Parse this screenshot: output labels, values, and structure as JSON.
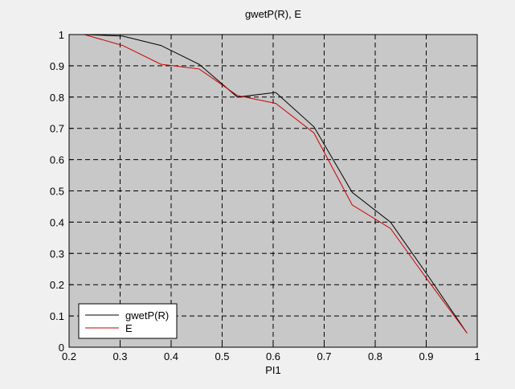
{
  "chart_data": {
    "type": "line",
    "title": "gwetP(R), E",
    "xlabel": "PI1",
    "ylabel": "",
    "xlim": [
      0.2,
      1
    ],
    "ylim": [
      0,
      1
    ],
    "xticks": [
      "0.2",
      "0.3",
      "0.4",
      "0.5",
      "0.6",
      "0.7",
      "0.8",
      "0.9",
      "1"
    ],
    "yticks": [
      "0",
      "0.1",
      "0.2",
      "0.3",
      "0.4",
      "0.5",
      "0.6",
      "0.7",
      "0.8",
      "0.9",
      "1"
    ],
    "grid": true,
    "legend_position": "bottom-left",
    "background_color": "#c8c8c8",
    "series": [
      {
        "name": "gwetP(R)",
        "color": "#000000",
        "x": [
          0.23,
          0.305,
          0.38,
          0.455,
          0.53,
          0.605,
          0.68,
          0.755,
          0.83,
          0.905,
          0.98
        ],
        "y": [
          1.0,
          0.995,
          0.965,
          0.905,
          0.8,
          0.815,
          0.705,
          0.495,
          0.4,
          0.225,
          0.045
        ]
      },
      {
        "name": "E",
        "color": "#cc0000",
        "x": [
          0.23,
          0.305,
          0.38,
          0.455,
          0.53,
          0.605,
          0.68,
          0.755,
          0.83,
          0.905,
          0.98
        ],
        "y": [
          1.0,
          0.965,
          0.905,
          0.89,
          0.805,
          0.78,
          0.685,
          0.455,
          0.38,
          0.21,
          0.045
        ]
      }
    ]
  }
}
